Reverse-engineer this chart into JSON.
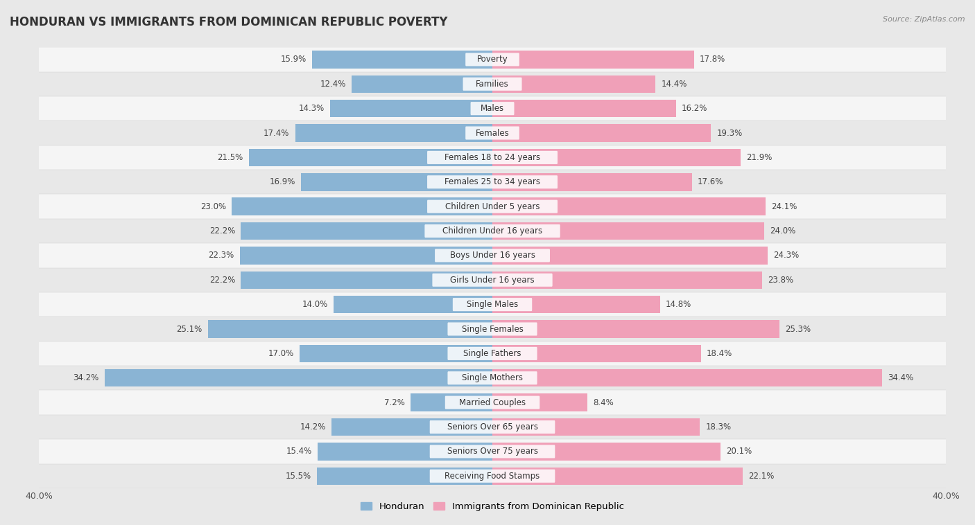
{
  "title": "HONDURAN VS IMMIGRANTS FROM DOMINICAN REPUBLIC POVERTY",
  "source": "Source: ZipAtlas.com",
  "categories": [
    "Poverty",
    "Families",
    "Males",
    "Females",
    "Females 18 to 24 years",
    "Females 25 to 34 years",
    "Children Under 5 years",
    "Children Under 16 years",
    "Boys Under 16 years",
    "Girls Under 16 years",
    "Single Males",
    "Single Females",
    "Single Fathers",
    "Single Mothers",
    "Married Couples",
    "Seniors Over 65 years",
    "Seniors Over 75 years",
    "Receiving Food Stamps"
  ],
  "honduran": [
    15.9,
    12.4,
    14.3,
    17.4,
    21.5,
    16.9,
    23.0,
    22.2,
    22.3,
    22.2,
    14.0,
    25.1,
    17.0,
    34.2,
    7.2,
    14.2,
    15.4,
    15.5
  ],
  "dominican": [
    17.8,
    14.4,
    16.2,
    19.3,
    21.9,
    17.6,
    24.1,
    24.0,
    24.3,
    23.8,
    14.8,
    25.3,
    18.4,
    34.4,
    8.4,
    18.3,
    20.1,
    22.1
  ],
  "honduran_color": "#8ab4d4",
  "dominican_color": "#f0a0b8",
  "bg_color": "#e8e8e8",
  "row_light": "#f5f5f5",
  "row_dark": "#e8e8e8",
  "label_bg": "#ffffff",
  "xlim": 40.0,
  "bar_height": 0.72,
  "label_fontsize": 8.5,
  "value_fontsize": 8.5,
  "title_fontsize": 12,
  "source_fontsize": 8,
  "legend_fontsize": 9.5
}
